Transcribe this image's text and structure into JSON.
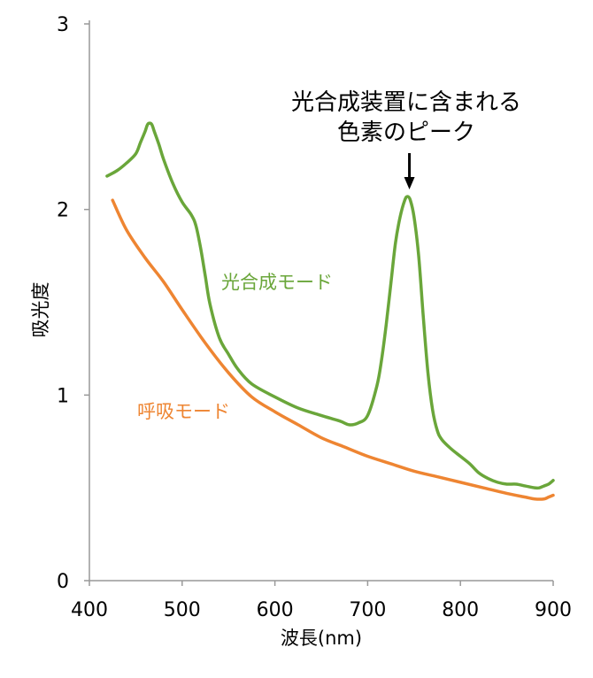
{
  "chart_data": {
    "type": "line",
    "title": "",
    "xlabel": "波長(nm)",
    "ylabel": "吸光度",
    "xlim": [
      400,
      900
    ],
    "ylim": [
      0,
      3
    ],
    "xticks": [
      "400",
      "500",
      "600",
      "700",
      "800",
      "900"
    ],
    "yticks": [
      "0",
      "1",
      "2",
      "3"
    ],
    "annotation": {
      "lines": [
        "光合成装置に含まれる",
        "色素のピーク"
      ],
      "points_to_x": 745
    },
    "colors": {
      "光合成モード": "#6aa63a",
      "呼吸モード": "#ee8532"
    },
    "series": [
      {
        "name": "光合成モード",
        "x": [
          419,
          430,
          440,
          450,
          455,
          460,
          463,
          467,
          470,
          475,
          480,
          490,
          500,
          510,
          515,
          520,
          525,
          530,
          540,
          550,
          560,
          575,
          600,
          625,
          650,
          670,
          680,
          690,
          700,
          710,
          715,
          720,
          725,
          730,
          735,
          740,
          743,
          746,
          750,
          755,
          760,
          765,
          770,
          775,
          780,
          790,
          800,
          810,
          820,
          830,
          840,
          850,
          860,
          870,
          880,
          885,
          890,
          895,
          900
        ],
        "y": [
          2.18,
          2.21,
          2.25,
          2.3,
          2.36,
          2.42,
          2.46,
          2.46,
          2.42,
          2.35,
          2.27,
          2.14,
          2.04,
          1.97,
          1.91,
          1.79,
          1.64,
          1.49,
          1.31,
          1.22,
          1.14,
          1.06,
          0.99,
          0.93,
          0.89,
          0.86,
          0.84,
          0.85,
          0.89,
          1.05,
          1.19,
          1.38,
          1.6,
          1.82,
          1.96,
          2.05,
          2.07,
          2.05,
          1.96,
          1.75,
          1.42,
          1.12,
          0.92,
          0.81,
          0.76,
          0.71,
          0.67,
          0.63,
          0.58,
          0.55,
          0.53,
          0.52,
          0.52,
          0.51,
          0.5,
          0.5,
          0.51,
          0.52,
          0.54
        ]
      },
      {
        "name": "呼吸モード",
        "x": [
          425,
          440,
          460,
          480,
          500,
          525,
          550,
          575,
          600,
          625,
          650,
          675,
          700,
          725,
          750,
          775,
          800,
          825,
          850,
          870,
          880,
          890,
          895,
          900
        ],
        "y": [
          2.05,
          1.89,
          1.74,
          1.61,
          1.46,
          1.28,
          1.12,
          0.99,
          0.91,
          0.84,
          0.77,
          0.72,
          0.67,
          0.63,
          0.59,
          0.56,
          0.53,
          0.5,
          0.47,
          0.45,
          0.44,
          0.44,
          0.45,
          0.46
        ]
      }
    ]
  }
}
